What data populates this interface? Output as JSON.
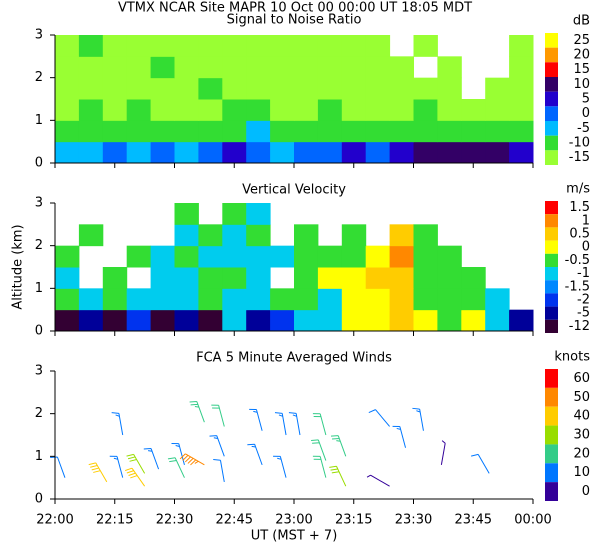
{
  "header": {
    "title": "VTMX  NCAR Site  MAPR 10 Oct 00  00:00 UT  18:05  MDT"
  },
  "chart_data": [
    {
      "type": "heatmap",
      "title": "Signal to Noise Ratio",
      "x": [
        3,
        9,
        15,
        21,
        27,
        33,
        39,
        45,
        51,
        57,
        63,
        69,
        75,
        81,
        87,
        93,
        99,
        105,
        111,
        117
      ],
      "y": [
        0.25,
        0.75,
        1.25,
        1.75,
        2.25,
        2.75
      ],
      "z": [
        [
          -5,
          -5,
          0,
          -5,
          0,
          -5,
          0,
          5,
          0,
          -5,
          0,
          0,
          5,
          0,
          5,
          10,
          10,
          10,
          10,
          5
        ],
        [
          -10,
          -10,
          -10,
          -10,
          -10,
          -10,
          -10,
          -10,
          -5,
          -10,
          -10,
          -10,
          -10,
          -10,
          -10,
          -10,
          -10,
          -10,
          -10,
          -10
        ],
        [
          -15,
          -10,
          -15,
          -10,
          -15,
          -15,
          -15,
          -10,
          -10,
          -15,
          -15,
          -10,
          -15,
          -15,
          -15,
          -10,
          -15,
          -15,
          -15,
          -15
        ],
        [
          -15,
          -15,
          -15,
          -15,
          -15,
          -15,
          -10,
          -15,
          -15,
          -15,
          -15,
          -15,
          -15,
          -15,
          -15,
          -15,
          -15,
          null,
          -15,
          -15
        ],
        [
          -15,
          -15,
          -15,
          -15,
          -10,
          -15,
          -15,
          -15,
          -15,
          -15,
          -15,
          -15,
          -15,
          -15,
          -15,
          null,
          -15,
          null,
          null,
          -15
        ],
        [
          -15,
          -10,
          -15,
          -15,
          -15,
          -15,
          -15,
          -15,
          -15,
          -15,
          -15,
          -15,
          -15,
          -15,
          null,
          -15,
          null,
          null,
          null,
          -15
        ]
      ],
      "xlim": [
        0,
        120
      ],
      "xticks": [
        0,
        15,
        30,
        45,
        60,
        75,
        90,
        105,
        120
      ],
      "ylim": [
        0,
        3
      ],
      "yticks": [
        0,
        1,
        2,
        3
      ],
      "colorbar": {
        "unit": "dB",
        "levels": [
          25,
          20,
          15,
          10,
          5,
          0,
          -5,
          -10,
          -15
        ],
        "colors": [
          "#ffff00",
          "#ff9900",
          "#ff0000",
          "#330066",
          "#2200cc",
          "#0066ff",
          "#00bbff",
          "#33dd33",
          "#99ff33"
        ]
      }
    },
    {
      "type": "heatmap",
      "title": "Vertical Velocity",
      "ylabel": "Altitude (km)",
      "x": [
        3,
        9,
        15,
        21,
        27,
        33,
        39,
        45,
        51,
        57,
        63,
        69,
        75,
        81,
        87,
        93,
        99,
        105,
        111,
        117
      ],
      "y": [
        0.25,
        0.75,
        1.25,
        1.75,
        2.25,
        2.75
      ],
      "z": [
        [
          -12,
          -5,
          -12,
          -2,
          -12,
          -5,
          -12,
          -1,
          -5,
          -2,
          -1,
          -1,
          0,
          0,
          0.5,
          0,
          -0.5,
          0,
          -1,
          -5
        ],
        [
          -0.5,
          -1,
          -0.5,
          -1,
          -1,
          -1,
          -0.5,
          -1,
          -1,
          -0.5,
          -0.5,
          -1,
          0,
          0,
          0.5,
          -0.5,
          -0.5,
          -0.5,
          -1,
          null
        ],
        [
          -1,
          null,
          -0.5,
          null,
          -1,
          -1,
          -0.5,
          -0.5,
          -1,
          null,
          -0.5,
          0,
          0,
          0.5,
          0.5,
          -0.5,
          -0.5,
          -0.5,
          null,
          null
        ],
        [
          -0.5,
          null,
          null,
          -0.5,
          -1,
          -0.5,
          -1,
          -1,
          -1,
          -1,
          -0.5,
          -0.5,
          -0.5,
          0,
          1,
          -0.5,
          -0.5,
          null,
          null,
          null
        ],
        [
          null,
          -0.5,
          null,
          null,
          null,
          -1,
          -0.5,
          -1,
          -0.5,
          null,
          -0.5,
          null,
          -0.5,
          null,
          0.5,
          -0.5,
          null,
          null,
          null,
          null
        ],
        [
          null,
          null,
          null,
          null,
          null,
          -0.5,
          null,
          -0.5,
          -1,
          null,
          null,
          null,
          null,
          null,
          null,
          null,
          null,
          null,
          null,
          null
        ]
      ],
      "xlim": [
        0,
        120
      ],
      "xticks": [
        0,
        15,
        30,
        45,
        60,
        75,
        90,
        105,
        120
      ],
      "ylim": [
        0,
        3
      ],
      "yticks": [
        0,
        1,
        2,
        3
      ],
      "colorbar": {
        "unit": "m/s",
        "levels": [
          1.5,
          1,
          0.5,
          0,
          -0.5,
          -1,
          -1.5,
          -2,
          -5,
          -12
        ],
        "colors": [
          "#ff0000",
          "#ff8800",
          "#ffcc00",
          "#ffff00",
          "#33dd33",
          "#00ccee",
          "#0088ff",
          "#0033ee",
          "#000099",
          "#330033"
        ]
      }
    },
    {
      "type": "barbs",
      "title": "FCA 5 Minute Averaged Winds",
      "xlabel": "UT  (MST + 7)",
      "x": [
        2.5,
        13,
        17,
        17,
        22.5,
        22.5,
        26,
        32.5,
        32.5,
        37.5,
        37.5,
        42.5,
        42.5,
        42.5,
        52,
        52,
        58,
        58,
        61.5,
        68,
        68,
        68,
        73,
        73,
        84,
        84,
        88,
        92.5,
        97,
        109
      ],
      "y": [
        0.5,
        0.4,
        1.5,
        0.5,
        0.6,
        0.3,
        0.7,
        0.8,
        0.5,
        1.8,
        0.8,
        1.7,
        1.0,
        0.4,
        1.6,
        0.8,
        1.5,
        0.5,
        1.5,
        1.5,
        0.9,
        0.5,
        1.0,
        0.3,
        1.7,
        0.3,
        1.2,
        1.6,
        0.8,
        0.6
      ],
      "speed": [
        10,
        40,
        15,
        15,
        30,
        40,
        15,
        15,
        20,
        25,
        55,
        20,
        15,
        10,
        15,
        15,
        15,
        15,
        15,
        20,
        20,
        20,
        25,
        30,
        10,
        5,
        15,
        15,
        5,
        10
      ],
      "direction": [
        340,
        330,
        350,
        345,
        330,
        325,
        340,
        345,
        335,
        340,
        300,
        345,
        340,
        350,
        345,
        340,
        350,
        345,
        350,
        345,
        340,
        345,
        340,
        335,
        320,
        300,
        345,
        350,
        10,
        330
      ],
      "xlim": [
        0,
        120
      ],
      "xticks": [
        {
          "value": 0,
          "label": "22:00"
        },
        {
          "value": 15,
          "label": "22:15"
        },
        {
          "value": 30,
          "label": "22:30"
        },
        {
          "value": 45,
          "label": "22:45"
        },
        {
          "value": 60,
          "label": "23:00"
        },
        {
          "value": 75,
          "label": "23:15"
        },
        {
          "value": 90,
          "label": "23:30"
        },
        {
          "value": 105,
          "label": "23:45"
        },
        {
          "value": 120,
          "label": "00:00"
        }
      ],
      "ylim": [
        0,
        3
      ],
      "yticks": [
        0,
        1,
        2,
        3
      ],
      "colorbar": {
        "unit": "knots",
        "levels": [
          60,
          50,
          40,
          30,
          20,
          10,
          0
        ],
        "colors": [
          "#ff0000",
          "#ff8800",
          "#ffcc00",
          "#99dd00",
          "#33cc88",
          "#0077ff",
          "#330099"
        ]
      }
    }
  ]
}
